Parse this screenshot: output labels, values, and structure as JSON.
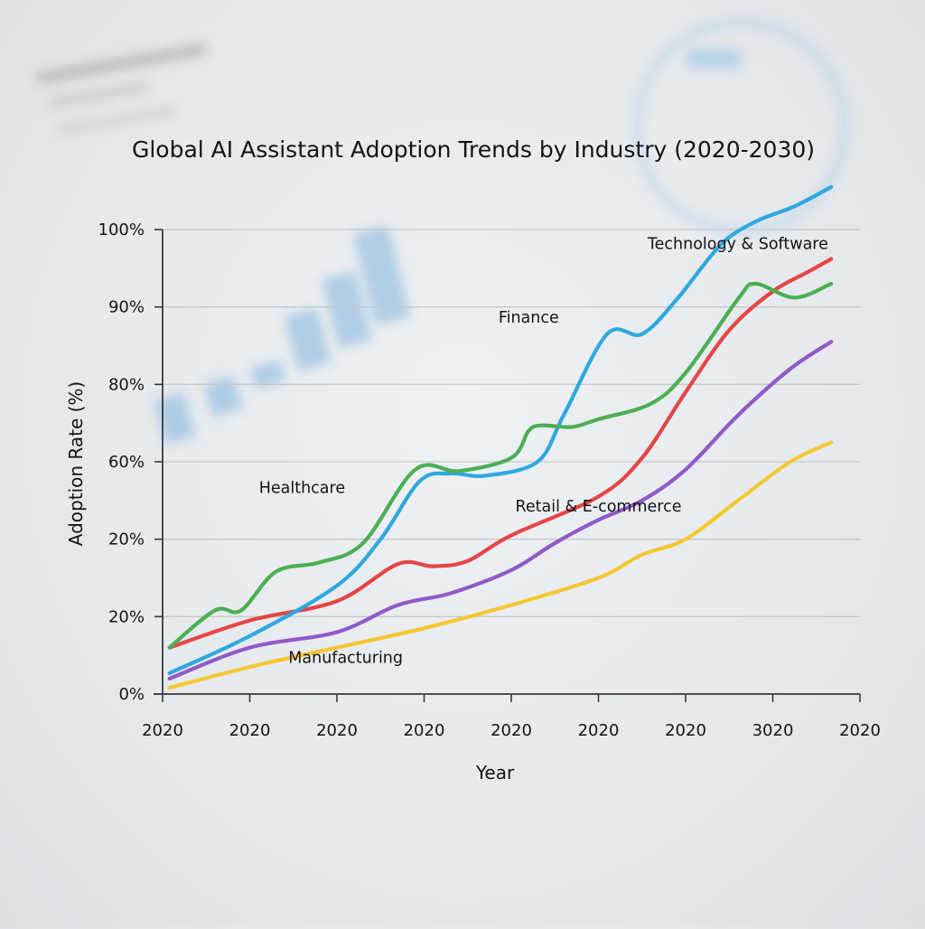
{
  "chart_data": {
    "type": "line",
    "title": "Global AI Assistant Adoption Trends by Industry (2020-2030)",
    "xlabel": "Year",
    "ylabel": "Adoption Rate (%)",
    "x_tick_labels": [
      "2020",
      "2020",
      "2020",
      "2020",
      "2020",
      "2020",
      "2020",
      "3020",
      "2020"
    ],
    "y_tick_labels": [
      "0%",
      "20%",
      "20%",
      "60%",
      "80%",
      "90%",
      "100%"
    ],
    "value_units_note": "x in tick-index units (0 = first x tick, 8 = last); y in tick-index units (0 = '0%' tick, 6 = '100%' tick), since printed tick labels are non-monotonic",
    "x_range": [
      0,
      8
    ],
    "y_range": [
      0,
      6
    ],
    "grid": "horizontal",
    "legend": "inline labels",
    "series": [
      {
        "name": "Technology & Software",
        "color": "#2ea8df",
        "points": [
          [
            0.08,
            0.27
          ],
          [
            1.0,
            0.75
          ],
          [
            2.0,
            1.4
          ],
          [
            2.5,
            2.0
          ],
          [
            2.95,
            2.75
          ],
          [
            3.3,
            2.85
          ],
          [
            3.7,
            2.82
          ],
          [
            4.3,
            3.0
          ],
          [
            4.6,
            3.6
          ],
          [
            5.1,
            4.65
          ],
          [
            5.5,
            4.65
          ],
          [
            5.9,
            5.1
          ],
          [
            6.4,
            5.8
          ],
          [
            6.8,
            6.1
          ],
          [
            7.25,
            6.3
          ],
          [
            7.67,
            6.55
          ]
        ]
      },
      {
        "name": "Healthcare",
        "color": "#4caf55",
        "points": [
          [
            0.08,
            0.6
          ],
          [
            0.6,
            1.08
          ],
          [
            0.9,
            1.08
          ],
          [
            1.3,
            1.58
          ],
          [
            1.8,
            1.7
          ],
          [
            2.3,
            1.95
          ],
          [
            2.9,
            2.9
          ],
          [
            3.4,
            2.88
          ],
          [
            4.0,
            3.05
          ],
          [
            4.2,
            3.4
          ],
          [
            4.35,
            3.47
          ],
          [
            4.7,
            3.45
          ],
          [
            5.0,
            3.55
          ],
          [
            5.6,
            3.75
          ],
          [
            6.0,
            4.15
          ],
          [
            6.6,
            5.1
          ],
          [
            6.8,
            5.3
          ],
          [
            7.25,
            5.12
          ],
          [
            7.67,
            5.3
          ]
        ]
      },
      {
        "name": "Finance",
        "color": "#e54545",
        "points": [
          [
            0.08,
            0.6
          ],
          [
            1.0,
            0.95
          ],
          [
            2.0,
            1.2
          ],
          [
            2.7,
            1.68
          ],
          [
            3.1,
            1.65
          ],
          [
            3.5,
            1.72
          ],
          [
            4.0,
            2.05
          ],
          [
            5.0,
            2.55
          ],
          [
            5.5,
            3.05
          ],
          [
            6.0,
            3.9
          ],
          [
            6.5,
            4.7
          ],
          [
            7.0,
            5.2
          ],
          [
            7.4,
            5.45
          ],
          [
            7.67,
            5.62
          ]
        ]
      },
      {
        "name": "Retail & E-commerce",
        "color": "#9159c9",
        "points": [
          [
            0.08,
            0.2
          ],
          [
            1.0,
            0.6
          ],
          [
            2.0,
            0.8
          ],
          [
            2.7,
            1.15
          ],
          [
            3.3,
            1.3
          ],
          [
            4.0,
            1.6
          ],
          [
            4.5,
            1.95
          ],
          [
            5.0,
            2.25
          ],
          [
            5.5,
            2.5
          ],
          [
            6.0,
            2.9
          ],
          [
            6.6,
            3.6
          ],
          [
            7.2,
            4.2
          ],
          [
            7.67,
            4.55
          ]
        ]
      },
      {
        "name": "Manufacturing",
        "color": "#f4c830",
        "points": [
          [
            0.08,
            0.08
          ],
          [
            1.0,
            0.35
          ],
          [
            2.0,
            0.6
          ],
          [
            3.0,
            0.85
          ],
          [
            4.0,
            1.15
          ],
          [
            5.0,
            1.5
          ],
          [
            5.5,
            1.8
          ],
          [
            6.0,
            2.0
          ],
          [
            6.6,
            2.5
          ],
          [
            7.2,
            3.0
          ],
          [
            7.67,
            3.25
          ]
        ]
      }
    ],
    "annotations": [
      {
        "text": "Technology & Software",
        "x": 6.6,
        "y": 5.75
      },
      {
        "text": "Finance",
        "x": 4.2,
        "y": 4.8
      },
      {
        "text": "Healthcare",
        "x": 1.6,
        "y": 2.6
      },
      {
        "text": "Retail & E-commerce",
        "x": 5.0,
        "y": 2.36
      },
      {
        "text": "Manufacturing",
        "x": 2.1,
        "y": 0.4
      }
    ]
  }
}
